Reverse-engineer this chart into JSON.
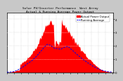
{
  "title": "Solar PV/Inverter Performance  West Array\nActual & Running Average Power Output",
  "title_fontsize": 3.2,
  "bg_color": "#c8c8c8",
  "plot_bg_color": "#ffffff",
  "grid_color": "#aaaaaa",
  "bar_color": "#ff0000",
  "avg_line_color": "#0000ee",
  "ylabel_fontsize": 3.2,
  "tick_fontsize": 2.8,
  "legend_fontsize": 2.8,
  "legend_actual": "Actual Power Output",
  "legend_avg": "Running Average",
  "border_color": "#000000",
  "title_color": "#000000",
  "white_grid_color": "#ffffff",
  "num_points": 144
}
